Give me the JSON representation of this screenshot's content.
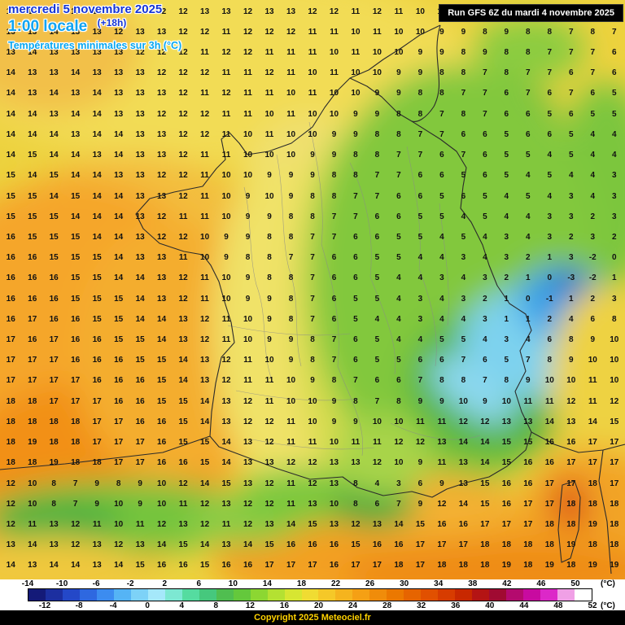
{
  "header": {
    "date_line": "mercredi 5 novembre 2025",
    "time_line": "1:00 locale",
    "run_offset": "(+18h)",
    "subtitle": "Températures minimales sur 3h (°C)",
    "run_info": "Run GFS 6Z du mardi 4 novembre 2025"
  },
  "footer": {
    "copyright": "Copyright 2025 Meteociel.fr"
  },
  "scale": {
    "unit": "(°C)",
    "top_labels": [
      "-14",
      "-10",
      "-6",
      "-2",
      "2",
      "6",
      "10",
      "14",
      "18",
      "22",
      "26",
      "30",
      "34",
      "38",
      "42",
      "46",
      "50"
    ],
    "bottom_labels": [
      "-12",
      "-8",
      "-4",
      "0",
      "4",
      "8",
      "12",
      "16",
      "20",
      "24",
      "28",
      "32",
      "36",
      "40",
      "44",
      "48",
      "52"
    ],
    "colors": [
      "#141a78",
      "#1c2fa0",
      "#2448c8",
      "#2e68e0",
      "#3c8cf0",
      "#55b4f5",
      "#7dd2f7",
      "#a5e8fa",
      "#7de8d2",
      "#55dca0",
      "#46c87d",
      "#50be50",
      "#64c83c",
      "#8cd732",
      "#b4e132",
      "#d7e632",
      "#f0dc32",
      "#f5c828",
      "#f5b41e",
      "#f5a014",
      "#f08c0a",
      "#eb7800",
      "#e66400",
      "#e15000",
      "#d73c00",
      "#c82800",
      "#b41414",
      "#a00a32",
      "#b40a6e",
      "#c80aa0",
      "#dc28c8",
      "#f0a0e6",
      "#ffffff"
    ]
  },
  "grid": {
    "rows": [
      "13 12 13 13 12 13 13 12 12 13 13 12 13 13 12 12 11 12 11 10 10 9 10 9 9 8 8 7 8",
      "13 13 14 13 13 12 13 13 12 12 11 12 12 12 11 11 10 11 10 10 9 9 8 9 8 8 7 8 7",
      "13 14 13 13 13 13 12 12 12 11 12 12 11 11 11 10 11 10 10 9 9 8 9 8 8 7 7 7 6",
      "14 13 13 14 13 13 13 12 12 12 11 11 12 11 10 11 10 10 9 9 8 8 7 8 7 7 6 7 6",
      "14 13 14 13 14 13 13 13 12 11 12 11 11 10 11 10 10 9 9 8 8 7 7 6 7 6 7 6 5",
      "14 14 13 14 14 13 13 12 12 12 11 11 10 11 10 10 9 9 8 8 7 8 7 6 6 5 6 5 5",
      "14 14 14 13 14 14 13 13 12 12 11 10 11 10 10 9 9 8 8 7 7 6 6 5 6 6 5 4 4",
      "14 15 14 14 13 14 13 13 12 11 11 10 10 10 9 9 8 8 7 7 6 7 6 5 5 4 5 4 4",
      "15 14 15 14 14 13 13 12 12 11 10 10 9 9 9 8 8 7 7 6 6 5 6 5 4 5 4 4 3",
      "15 15 14 15 14 14 13 13 12 11 10 9 10 9 8 8 7 7 6 6 5 6 5 4 5 4 3 4 3",
      "15 15 15 14 14 14 13 12 11 11 10 9 9 8 8 7 7 6 6 5 5 4 5 4 4 3 3 2 3",
      "16 15 15 15 14 14 13 12 12 10 9 9 8 8 7 7 6 6 5 5 4 5 4 3 4 3 2 3 2",
      "16 16 15 15 15 14 13 13 11 10 9 8 8 7 7 6 6 5 5 4 4 3 4 3 2 1 3 -2 0",
      "16 16 16 15 15 14 14 13 12 11 10 9 8 8 7 6 6 5 4 4 3 4 3 2 1 0 -3 -2 1",
      "16 16 16 15 15 15 14 13 12 11 10 9 9 8 7 6 5 5 4 3 4 3 2 1 0 -1 1 2 3",
      "16 17 16 16 15 15 14 14 13 12 11 10 9 8 7 6 5 4 4 3 4 4 3 1 1 2 4 6 8",
      "17 16 17 16 16 15 15 14 13 12 11 10 9 9 8 7 6 5 4 4 5 5 4 3 4 6 8 9 10",
      "17 17 17 16 16 16 15 15 14 13 12 11 10 9 8 7 6 5 5 6 6 7 6 5 7 8 9 10 10",
      "17 17 17 17 16 16 16 15 14 13 12 11 11 10 9 8 7 6 6 7 8 8 7 8 9 10 10 11 10",
      "18 18 17 17 17 16 16 15 15 14 13 12 11 10 10 9 8 7 8 9 9 10 9 10 11 11 12 11 12",
      "18 18 18 18 17 17 16 16 15 14 13 12 12 11 10 9 9 10 10 11 11 12 12 13 13 14 13 14 15",
      "18 19 18 18 17 17 17 16 15 15 14 13 12 11 11 10 11 11 12 12 13 14 14 15 15 16 16 17 17",
      "18 18 19 18 18 17 17 16 16 15 14 13 13 12 12 13 13 12 10 9 11 13 14 15 16 16 17 17 17",
      "12 10 8 7 9 8 9 10 12 14 15 13 12 11 12 13 8 4 3 6 9 13 15 16 16 17 17 18 17",
      "12 10 8 7 9 10 9 10 11 12 13 12 12 11 13 10 8 6 7 9 12 14 15 16 17 17 18 18 18",
      "12 11 13 12 11 10 11 12 13 12 11 12 13 14 15 13 12 13 14 15 16 16 17 17 17 18 18 19 18",
      "13 14 13 12 13 12 13 14 15 14 13 14 15 16 16 16 15 16 16 17 17 17 18 18 18 18 19 18 18",
      "14 13 14 14 13 14 15 16 16 15 16 16 17 17 17 16 17 17 18 17 18 18 18 19 18 19 18 19 19"
    ]
  }
}
